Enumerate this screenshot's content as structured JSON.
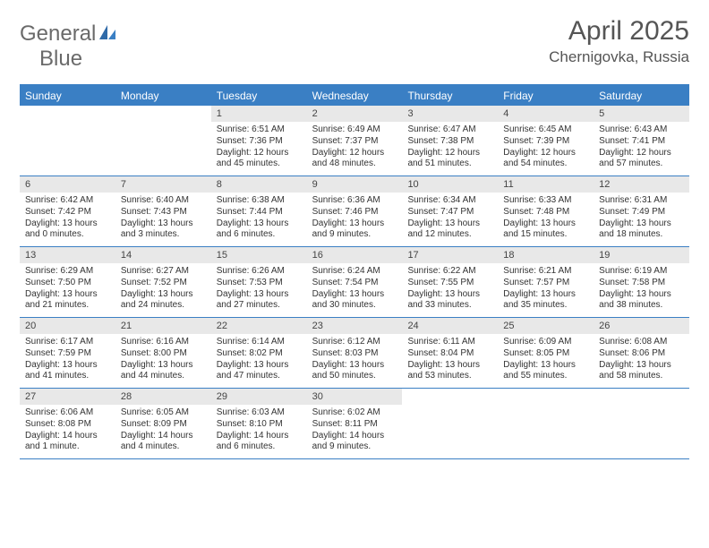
{
  "logo": {
    "text1": "General",
    "text2": "Blue"
  },
  "title": "April 2025",
  "location": "Chernigovka, Russia",
  "colors": {
    "accent": "#3a7fc4",
    "daynum_bg": "#e8e8e8",
    "text": "#333333",
    "header_text": "#555555",
    "logo_gray": "#6a6a6a"
  },
  "weekdays": [
    "Sunday",
    "Monday",
    "Tuesday",
    "Wednesday",
    "Thursday",
    "Friday",
    "Saturday"
  ],
  "month_start_weekday": 2,
  "days": [
    {
      "n": 1,
      "sunrise": "6:51 AM",
      "sunset": "7:36 PM",
      "daylight": "12 hours and 45 minutes."
    },
    {
      "n": 2,
      "sunrise": "6:49 AM",
      "sunset": "7:37 PM",
      "daylight": "12 hours and 48 minutes."
    },
    {
      "n": 3,
      "sunrise": "6:47 AM",
      "sunset": "7:38 PM",
      "daylight": "12 hours and 51 minutes."
    },
    {
      "n": 4,
      "sunrise": "6:45 AM",
      "sunset": "7:39 PM",
      "daylight": "12 hours and 54 minutes."
    },
    {
      "n": 5,
      "sunrise": "6:43 AM",
      "sunset": "7:41 PM",
      "daylight": "12 hours and 57 minutes."
    },
    {
      "n": 6,
      "sunrise": "6:42 AM",
      "sunset": "7:42 PM",
      "daylight": "13 hours and 0 minutes."
    },
    {
      "n": 7,
      "sunrise": "6:40 AM",
      "sunset": "7:43 PM",
      "daylight": "13 hours and 3 minutes."
    },
    {
      "n": 8,
      "sunrise": "6:38 AM",
      "sunset": "7:44 PM",
      "daylight": "13 hours and 6 minutes."
    },
    {
      "n": 9,
      "sunrise": "6:36 AM",
      "sunset": "7:46 PM",
      "daylight": "13 hours and 9 minutes."
    },
    {
      "n": 10,
      "sunrise": "6:34 AM",
      "sunset": "7:47 PM",
      "daylight": "13 hours and 12 minutes."
    },
    {
      "n": 11,
      "sunrise": "6:33 AM",
      "sunset": "7:48 PM",
      "daylight": "13 hours and 15 minutes."
    },
    {
      "n": 12,
      "sunrise": "6:31 AM",
      "sunset": "7:49 PM",
      "daylight": "13 hours and 18 minutes."
    },
    {
      "n": 13,
      "sunrise": "6:29 AM",
      "sunset": "7:50 PM",
      "daylight": "13 hours and 21 minutes."
    },
    {
      "n": 14,
      "sunrise": "6:27 AM",
      "sunset": "7:52 PM",
      "daylight": "13 hours and 24 minutes."
    },
    {
      "n": 15,
      "sunrise": "6:26 AM",
      "sunset": "7:53 PM",
      "daylight": "13 hours and 27 minutes."
    },
    {
      "n": 16,
      "sunrise": "6:24 AM",
      "sunset": "7:54 PM",
      "daylight": "13 hours and 30 minutes."
    },
    {
      "n": 17,
      "sunrise": "6:22 AM",
      "sunset": "7:55 PM",
      "daylight": "13 hours and 33 minutes."
    },
    {
      "n": 18,
      "sunrise": "6:21 AM",
      "sunset": "7:57 PM",
      "daylight": "13 hours and 35 minutes."
    },
    {
      "n": 19,
      "sunrise": "6:19 AM",
      "sunset": "7:58 PM",
      "daylight": "13 hours and 38 minutes."
    },
    {
      "n": 20,
      "sunrise": "6:17 AM",
      "sunset": "7:59 PM",
      "daylight": "13 hours and 41 minutes."
    },
    {
      "n": 21,
      "sunrise": "6:16 AM",
      "sunset": "8:00 PM",
      "daylight": "13 hours and 44 minutes."
    },
    {
      "n": 22,
      "sunrise": "6:14 AM",
      "sunset": "8:02 PM",
      "daylight": "13 hours and 47 minutes."
    },
    {
      "n": 23,
      "sunrise": "6:12 AM",
      "sunset": "8:03 PM",
      "daylight": "13 hours and 50 minutes."
    },
    {
      "n": 24,
      "sunrise": "6:11 AM",
      "sunset": "8:04 PM",
      "daylight": "13 hours and 53 minutes."
    },
    {
      "n": 25,
      "sunrise": "6:09 AM",
      "sunset": "8:05 PM",
      "daylight": "13 hours and 55 minutes."
    },
    {
      "n": 26,
      "sunrise": "6:08 AM",
      "sunset": "8:06 PM",
      "daylight": "13 hours and 58 minutes."
    },
    {
      "n": 27,
      "sunrise": "6:06 AM",
      "sunset": "8:08 PM",
      "daylight": "14 hours and 1 minute."
    },
    {
      "n": 28,
      "sunrise": "6:05 AM",
      "sunset": "8:09 PM",
      "daylight": "14 hours and 4 minutes."
    },
    {
      "n": 29,
      "sunrise": "6:03 AM",
      "sunset": "8:10 PM",
      "daylight": "14 hours and 6 minutes."
    },
    {
      "n": 30,
      "sunrise": "6:02 AM",
      "sunset": "8:11 PM",
      "daylight": "14 hours and 9 minutes."
    }
  ],
  "labels": {
    "sunrise": "Sunrise:",
    "sunset": "Sunset:",
    "daylight": "Daylight:"
  }
}
